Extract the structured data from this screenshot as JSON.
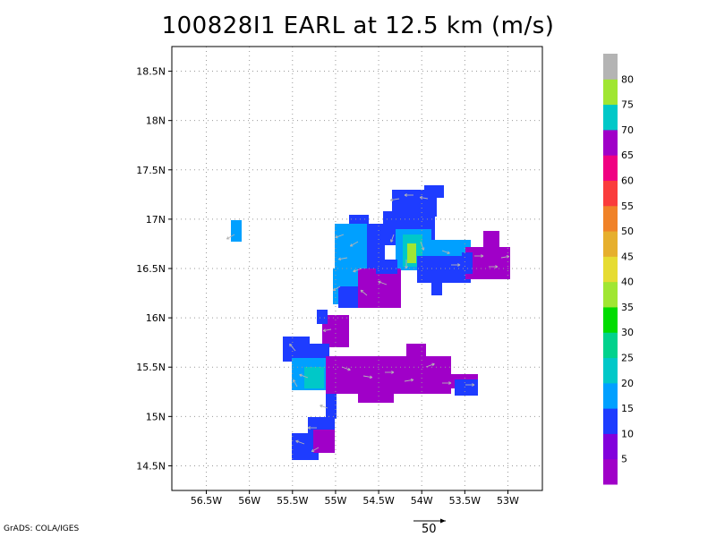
{
  "title": "100828I1 EARL at 12.5 km (m/s)",
  "credit": "GrADS: COLA/IGES",
  "reference_vector": {
    "label": "50"
  },
  "axes": {
    "x_ticks": [
      "56.5W",
      "56W",
      "55.5W",
      "55W",
      "54.5W",
      "54W",
      "53.5W",
      "53W"
    ],
    "y_ticks": [
      "18.5N",
      "18N",
      "17.5N",
      "17N",
      "16.5N",
      "16N",
      "15.5N",
      "15N",
      "14.5N"
    ],
    "lon_range": [
      -56.9,
      -52.6
    ],
    "lat_range": [
      14.25,
      18.75
    ]
  },
  "colorbar": {
    "labels": [
      "5",
      "10",
      "15",
      "20",
      "25",
      "30",
      "35",
      "40",
      "45",
      "50",
      "55",
      "60",
      "65",
      "70",
      "75",
      "80"
    ],
    "colors": [
      "#a000c8",
      "#8200dc",
      "#1e3cff",
      "#00a0ff",
      "#00c8c8",
      "#00d28c",
      "#00dc00",
      "#a0e632",
      "#e6dc32",
      "#e6af2d",
      "#f08228",
      "#fa3c3c",
      "#f00082",
      "#a000c8",
      "#00c8c8",
      "#a0e632",
      "#b4b4b4"
    ]
  },
  "colors": {
    "grid": "#999999",
    "arrow": "#b4b4b4"
  }
}
